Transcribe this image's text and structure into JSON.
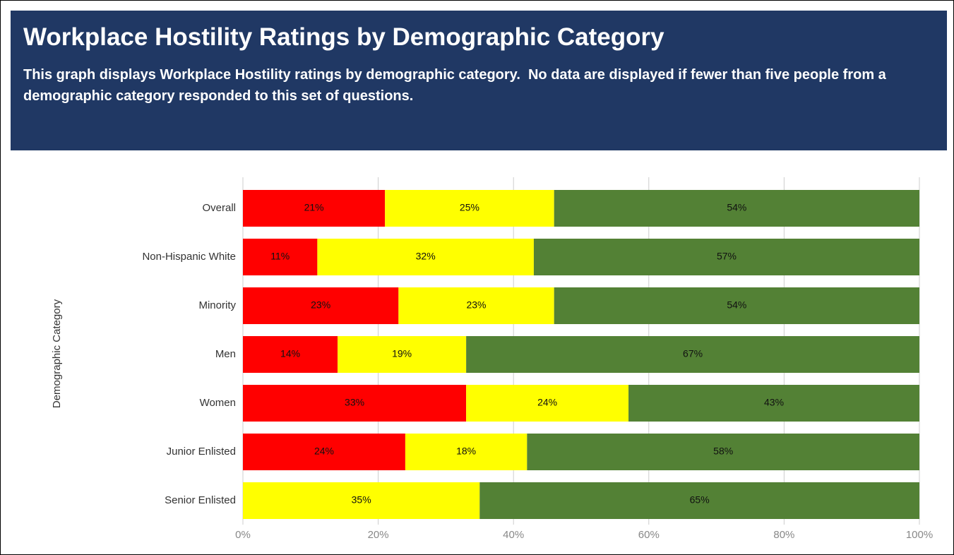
{
  "chart_data": {
    "type": "stacked-bar-horizontal",
    "title": "Workplace Hostility Ratings by Demographic Category",
    "subtitle": "This graph displays Workplace Hostility ratings by demographic category.  No data are displayed if fewer than five people from a demographic category responded to this set of questions.",
    "y_label": "Demographic Category",
    "categories": [
      "Overall",
      "Non-Hispanic White",
      "Minority",
      "Men",
      "Women",
      "Junior Enlisted",
      "Senior Enlisted"
    ],
    "series": [
      {
        "color": "#ff0000",
        "values": [
          21,
          11,
          23,
          14,
          33,
          24,
          null
        ],
        "value_labels": [
          "21%",
          "11%",
          "23%",
          "14%",
          "33%",
          "24%",
          null
        ]
      },
      {
        "color": "#ffff00",
        "values": [
          25,
          32,
          23,
          19,
          24,
          18,
          35
        ],
        "value_labels": [
          "25%",
          "32%",
          "23%",
          "19%",
          "24%",
          "18%",
          "35%"
        ]
      },
      {
        "color": "#538135",
        "values": [
          54,
          57,
          54,
          67,
          43,
          58,
          65
        ],
        "value_labels": [
          "54%",
          "57%",
          "54%",
          "67%",
          "43%",
          "58%",
          "65%"
        ]
      }
    ],
    "xlim": [
      0,
      100
    ],
    "xticks": [
      {
        "value": 0,
        "label": "0%"
      },
      {
        "value": 20,
        "label": "20%"
      },
      {
        "value": 40,
        "label": "40%"
      },
      {
        "value": 60,
        "label": "60%"
      },
      {
        "value": 80,
        "label": "80%"
      },
      {
        "value": 100,
        "label": "100%"
      }
    ],
    "grid": true
  }
}
